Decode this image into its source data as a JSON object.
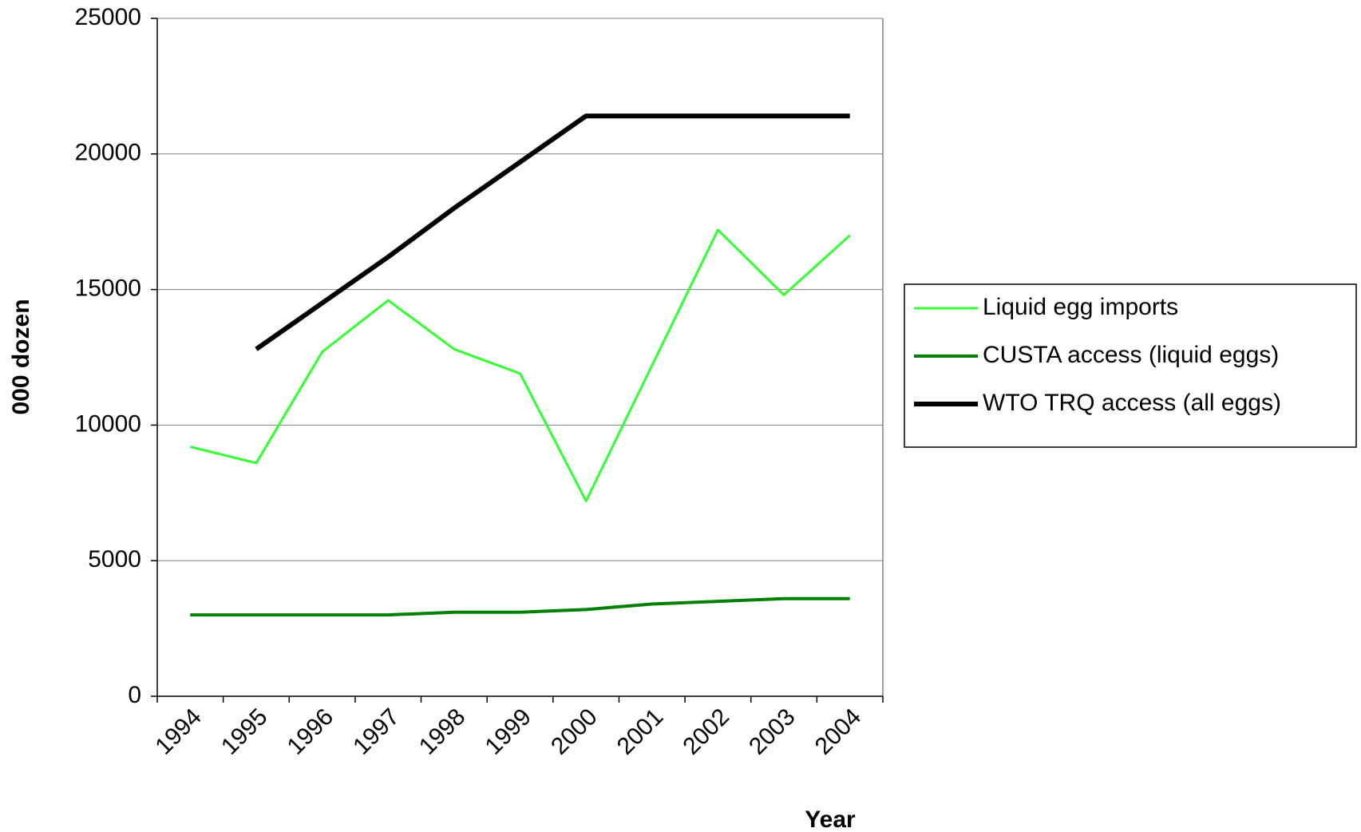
{
  "chart_data": {
    "type": "line",
    "x_label": "Year",
    "y_label": "000 dozen",
    "categories": [
      "1994",
      "1995",
      "1996",
      "1997",
      "1998",
      "1999",
      "2000",
      "2001",
      "2002",
      "2003",
      "2004"
    ],
    "series": [
      {
        "name": "Liquid egg imports",
        "color": "#33ff33",
        "width": 3,
        "values": [
          9200,
          8600,
          12700,
          14600,
          12800,
          11900,
          7200,
          12200,
          17200,
          14800,
          17000
        ]
      },
      {
        "name": "CUSTA access (liquid eggs)",
        "color": "#008000",
        "width": 4,
        "values": [
          3000,
          3000,
          3000,
          3000,
          3100,
          3100,
          3200,
          3400,
          3500,
          3600,
          3600
        ]
      },
      {
        "name": "WTO TRQ access (all eggs)",
        "color": "#000000",
        "width": 6,
        "values": [
          null,
          12800,
          14500,
          16200,
          18000,
          19700,
          21400,
          21400,
          21400,
          21400,
          21400
        ]
      }
    ],
    "ylim": [
      0,
      25000
    ],
    "yticks": [
      0,
      5000,
      10000,
      15000,
      20000,
      25000
    ],
    "grid": true,
    "legend": "right"
  }
}
